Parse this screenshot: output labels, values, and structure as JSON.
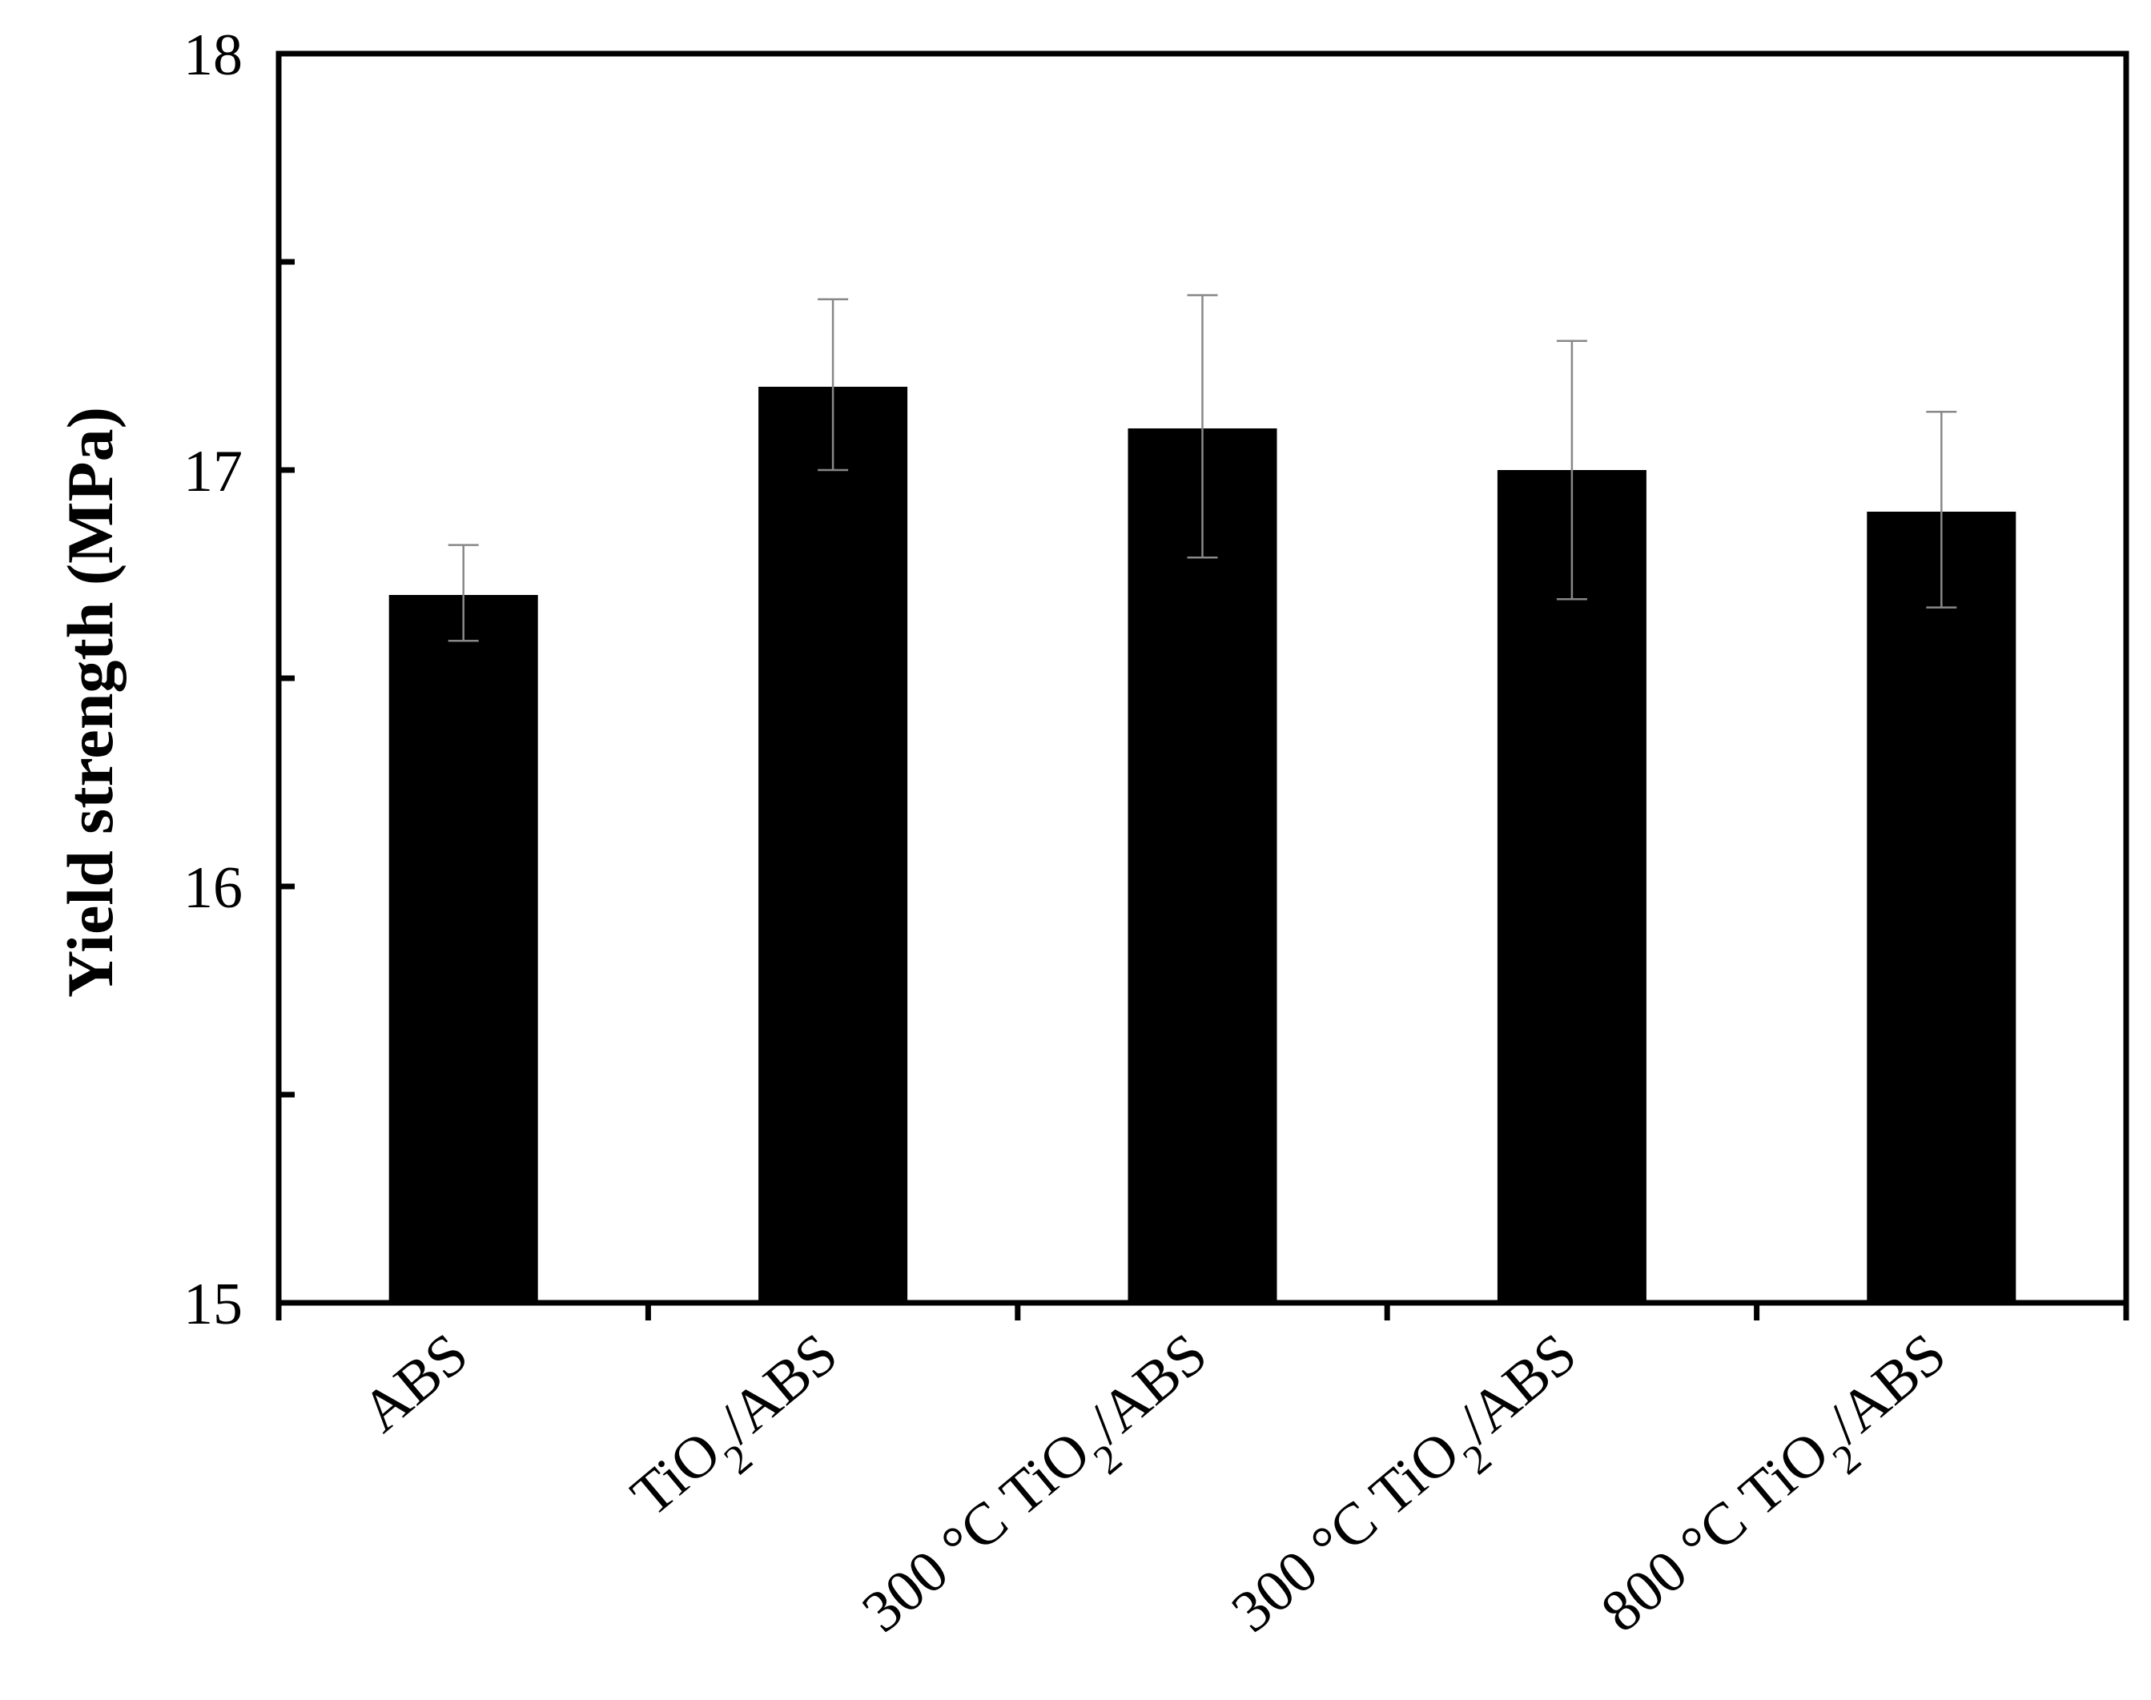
{
  "chart_data": {
    "type": "bar",
    "title": "",
    "xlabel": "",
    "ylabel": "Yield strength  (MPa)",
    "ylim": [
      15,
      18
    ],
    "yticks": [
      15,
      16,
      17,
      18
    ],
    "y_minor_step": 0.5,
    "grid": false,
    "categories": [
      {
        "base": "ABS",
        "parts": [
          {
            "t": "ABS"
          }
        ]
      },
      {
        "base": "TiO2/ABS",
        "parts": [
          {
            "t": "TiO"
          },
          {
            "t": "2",
            "sub": true
          },
          {
            "t": "/ABS"
          }
        ]
      },
      {
        "base": "300 °C TiO2/ABS",
        "parts": [
          {
            "t": "300 °C TiO"
          },
          {
            "t": "2",
            "sub": true
          },
          {
            "t": "/ABS"
          }
        ]
      },
      {
        "base": "300 °C TiO2/ABS",
        "parts": [
          {
            "t": "300 °C TiO"
          },
          {
            "t": "2",
            "sub": true
          },
          {
            "t": "/ABS"
          }
        ]
      },
      {
        "base": "800 °C TiO2/ABS",
        "parts": [
          {
            "t": "800 °C TiO"
          },
          {
            "t": "2",
            "sub": true
          },
          {
            "t": "/ABS"
          }
        ]
      }
    ],
    "values": [
      16.7,
      17.2,
      17.1,
      17.0,
      16.9
    ],
    "error_upper": [
      16.82,
      17.41,
      17.42,
      17.31,
      17.14
    ],
    "error_lower": [
      16.59,
      17.0,
      16.79,
      16.69,
      16.67
    ],
    "colors": {
      "bar": "#000000",
      "error": "#888888",
      "axis": "#000000"
    }
  }
}
